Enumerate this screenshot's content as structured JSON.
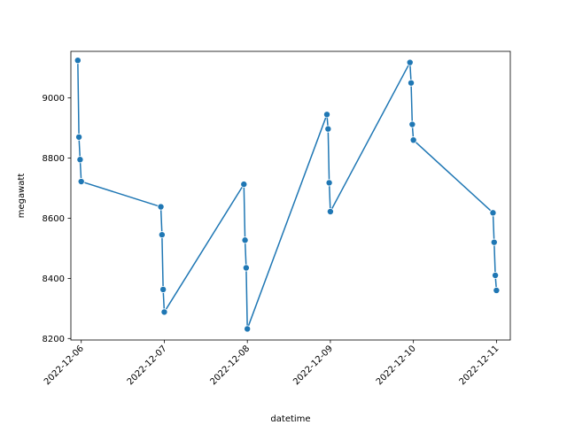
{
  "chart_data": {
    "type": "line",
    "xlabel": "datetime",
    "ylabel": "megawatt",
    "color": "#1f77b4",
    "marker": "circle",
    "grid": false,
    "xlim": [
      "2022-12-05 21:00",
      "2022-12-11 04:00"
    ],
    "ylim": [
      8195,
      9155
    ],
    "x_ticks": [
      "2022-12-06",
      "2022-12-07",
      "2022-12-08",
      "2022-12-09",
      "2022-12-10",
      "2022-12-11"
    ],
    "y_ticks": [
      8200,
      8400,
      8600,
      8800,
      9000
    ],
    "series": [
      {
        "x": [
          "2022-12-05 23:00",
          "2022-12-05 23:20",
          "2022-12-05 23:40",
          "2022-12-06 00:00",
          "2022-12-06 23:00",
          "2022-12-06 23:20",
          "2022-12-06 23:40",
          "2022-12-07 00:00",
          "2022-12-07 23:00",
          "2022-12-07 23:20",
          "2022-12-07 23:40",
          "2022-12-08 00:00",
          "2022-12-08 23:00",
          "2022-12-08 23:20",
          "2022-12-08 23:40",
          "2022-12-09 00:00",
          "2022-12-09 23:00",
          "2022-12-09 23:20",
          "2022-12-09 23:40",
          "2022-12-10 00:00",
          "2022-12-10 23:00",
          "2022-12-10 23:20",
          "2022-12-10 23:40",
          "2022-12-11 00:00"
        ],
        "y": [
          9125,
          8870,
          8795,
          8722,
          8638,
          8545,
          8363,
          8288,
          8713,
          8527,
          8435,
          8232,
          8945,
          8897,
          8718,
          8622,
          9118,
          9050,
          8912,
          8860,
          8618,
          8520,
          8410,
          8360
        ]
      }
    ]
  }
}
